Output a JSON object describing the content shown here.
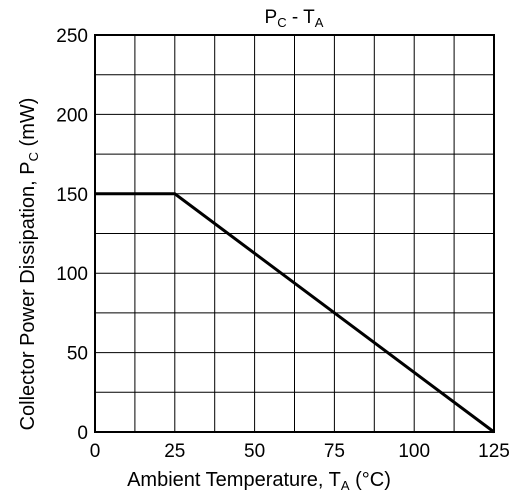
{
  "chart_data": {
    "type": "line",
    "title": {
      "main_a": "P",
      "main_a_sub": "C",
      "separator": " - ",
      "main_b": "T",
      "main_b_sub": "A"
    },
    "xlabel": {
      "text": "Ambient Temperature, T",
      "sub": "A",
      "unit": " (°C)"
    },
    "ylabel": {
      "text": "Collector Power Dissipation, P",
      "sub": "C",
      "unit": " (mW)"
    },
    "xlim": [
      0,
      125
    ],
    "ylim": [
      0,
      250
    ],
    "x_ticks": [
      0,
      25,
      50,
      75,
      100,
      125
    ],
    "y_ticks": [
      0,
      50,
      100,
      150,
      200,
      250
    ],
    "x_grid_step": 12.5,
    "y_grid_step": 25,
    "grid": true,
    "series": [
      {
        "x": [
          0,
          25,
          125
        ],
        "y": [
          150,
          150,
          0
        ]
      }
    ],
    "colors": {
      "line": "#000000",
      "grid": "#000000",
      "background": "#ffffff"
    }
  }
}
